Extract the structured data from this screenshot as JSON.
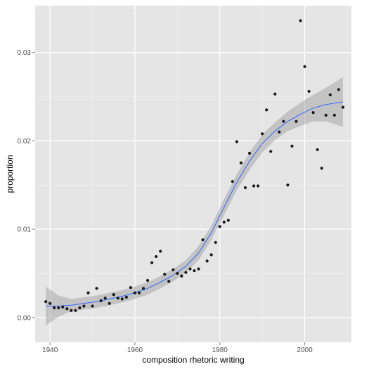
{
  "chart_data": {
    "type": "scatter",
    "title": "",
    "xlabel": "composition rhetoric writing",
    "ylabel": "proportion",
    "xlim": [
      1936.5,
      2011
    ],
    "ylim": [
      -0.0028,
      0.0353
    ],
    "x_ticks": [
      1940,
      1960,
      1980,
      2000
    ],
    "x_tick_labels": [
      "1940",
      "1960",
      "1980",
      "2000"
    ],
    "y_ticks": [
      0.0,
      0.01,
      0.02,
      0.03
    ],
    "y_tick_labels": [
      "0.00",
      "0.01",
      "0.02",
      "0.03"
    ],
    "grid": true,
    "legend": "none",
    "colors": {
      "panel": "#e5e5e5",
      "grid": "#ffffff",
      "points": "#1a1a1a",
      "smooth": "#3366ff",
      "band": "#999999"
    },
    "points": {
      "x": [
        1939,
        1940,
        1941,
        1942,
        1943,
        1944,
        1945,
        1946,
        1947,
        1948,
        1949,
        1950,
        1951,
        1952,
        1953,
        1954,
        1955,
        1956,
        1957,
        1958,
        1959,
        1960,
        1961,
        1962,
        1963,
        1964,
        1965,
        1966,
        1967,
        1968,
        1969,
        1970,
        1971,
        1972,
        1973,
        1974,
        1975,
        1976,
        1977,
        1978,
        1979,
        1980,
        1981,
        1982,
        1983,
        1984,
        1985,
        1986,
        1987,
        1988,
        1989,
        1990,
        1991,
        1992,
        1993,
        1994,
        1995,
        1996,
        1997,
        1998,
        1999,
        2000,
        2001,
        2002,
        2003,
        2004,
        2005,
        2006,
        2007,
        2008,
        2009
      ],
      "y": [
        0.0018,
        0.0016,
        0.0011,
        0.0011,
        0.0012,
        0.001,
        0.0008,
        0.0008,
        0.0011,
        0.0013,
        0.0028,
        0.0013,
        0.0033,
        0.0019,
        0.0022,
        0.0016,
        0.0026,
        0.0022,
        0.0021,
        0.0023,
        0.0034,
        0.0028,
        0.0028,
        0.0033,
        0.0042,
        0.0062,
        0.0069,
        0.0075,
        0.0049,
        0.0041,
        0.0054,
        0.005,
        0.0047,
        0.0051,
        0.0055,
        0.0053,
        0.0055,
        0.0088,
        0.0064,
        0.0071,
        0.0085,
        0.0103,
        0.0108,
        0.011,
        0.0154,
        0.0199,
        0.0175,
        0.0147,
        0.0186,
        0.0149,
        0.0149,
        0.0208,
        0.0235,
        0.0188,
        0.0253,
        0.021,
        0.0222,
        0.015,
        0.0194,
        0.0222,
        0.0336,
        0.0284,
        0.0256,
        0.0232,
        0.019,
        0.0169,
        0.0229,
        0.0252,
        0.0229,
        0.0258,
        0.0238
      ]
    },
    "smooth": {
      "x": [
        1939,
        1942,
        1945,
        1948,
        1951,
        1954,
        1957,
        1960,
        1963,
        1966,
        1969,
        1972,
        1975,
        1978,
        1981,
        1984,
        1987,
        1990,
        1993,
        1996,
        1999,
        2002,
        2005,
        2009
      ],
      "y": [
        0.0013,
        0.0013,
        0.0014,
        0.0016,
        0.0018,
        0.0021,
        0.0024,
        0.0028,
        0.0033,
        0.004,
        0.0048,
        0.0058,
        0.0073,
        0.0096,
        0.0125,
        0.0153,
        0.0177,
        0.0197,
        0.0211,
        0.0222,
        0.023,
        0.0237,
        0.0241,
        0.0244
      ],
      "ymin": [
        -0.0009,
        0.0001,
        0.0007,
        0.0009,
        0.0011,
        0.0014,
        0.0017,
        0.0021,
        0.0026,
        0.0033,
        0.0041,
        0.0051,
        0.0065,
        0.0088,
        0.0116,
        0.0144,
        0.0167,
        0.0187,
        0.0201,
        0.0211,
        0.0217,
        0.0222,
        0.0222,
        0.0216
      ],
      "ymax": [
        0.0035,
        0.0025,
        0.0021,
        0.0023,
        0.0025,
        0.0028,
        0.0031,
        0.0035,
        0.004,
        0.0047,
        0.0055,
        0.0065,
        0.0081,
        0.0104,
        0.0134,
        0.0162,
        0.0187,
        0.0207,
        0.0221,
        0.0233,
        0.0243,
        0.0252,
        0.026,
        0.0272
      ]
    }
  }
}
